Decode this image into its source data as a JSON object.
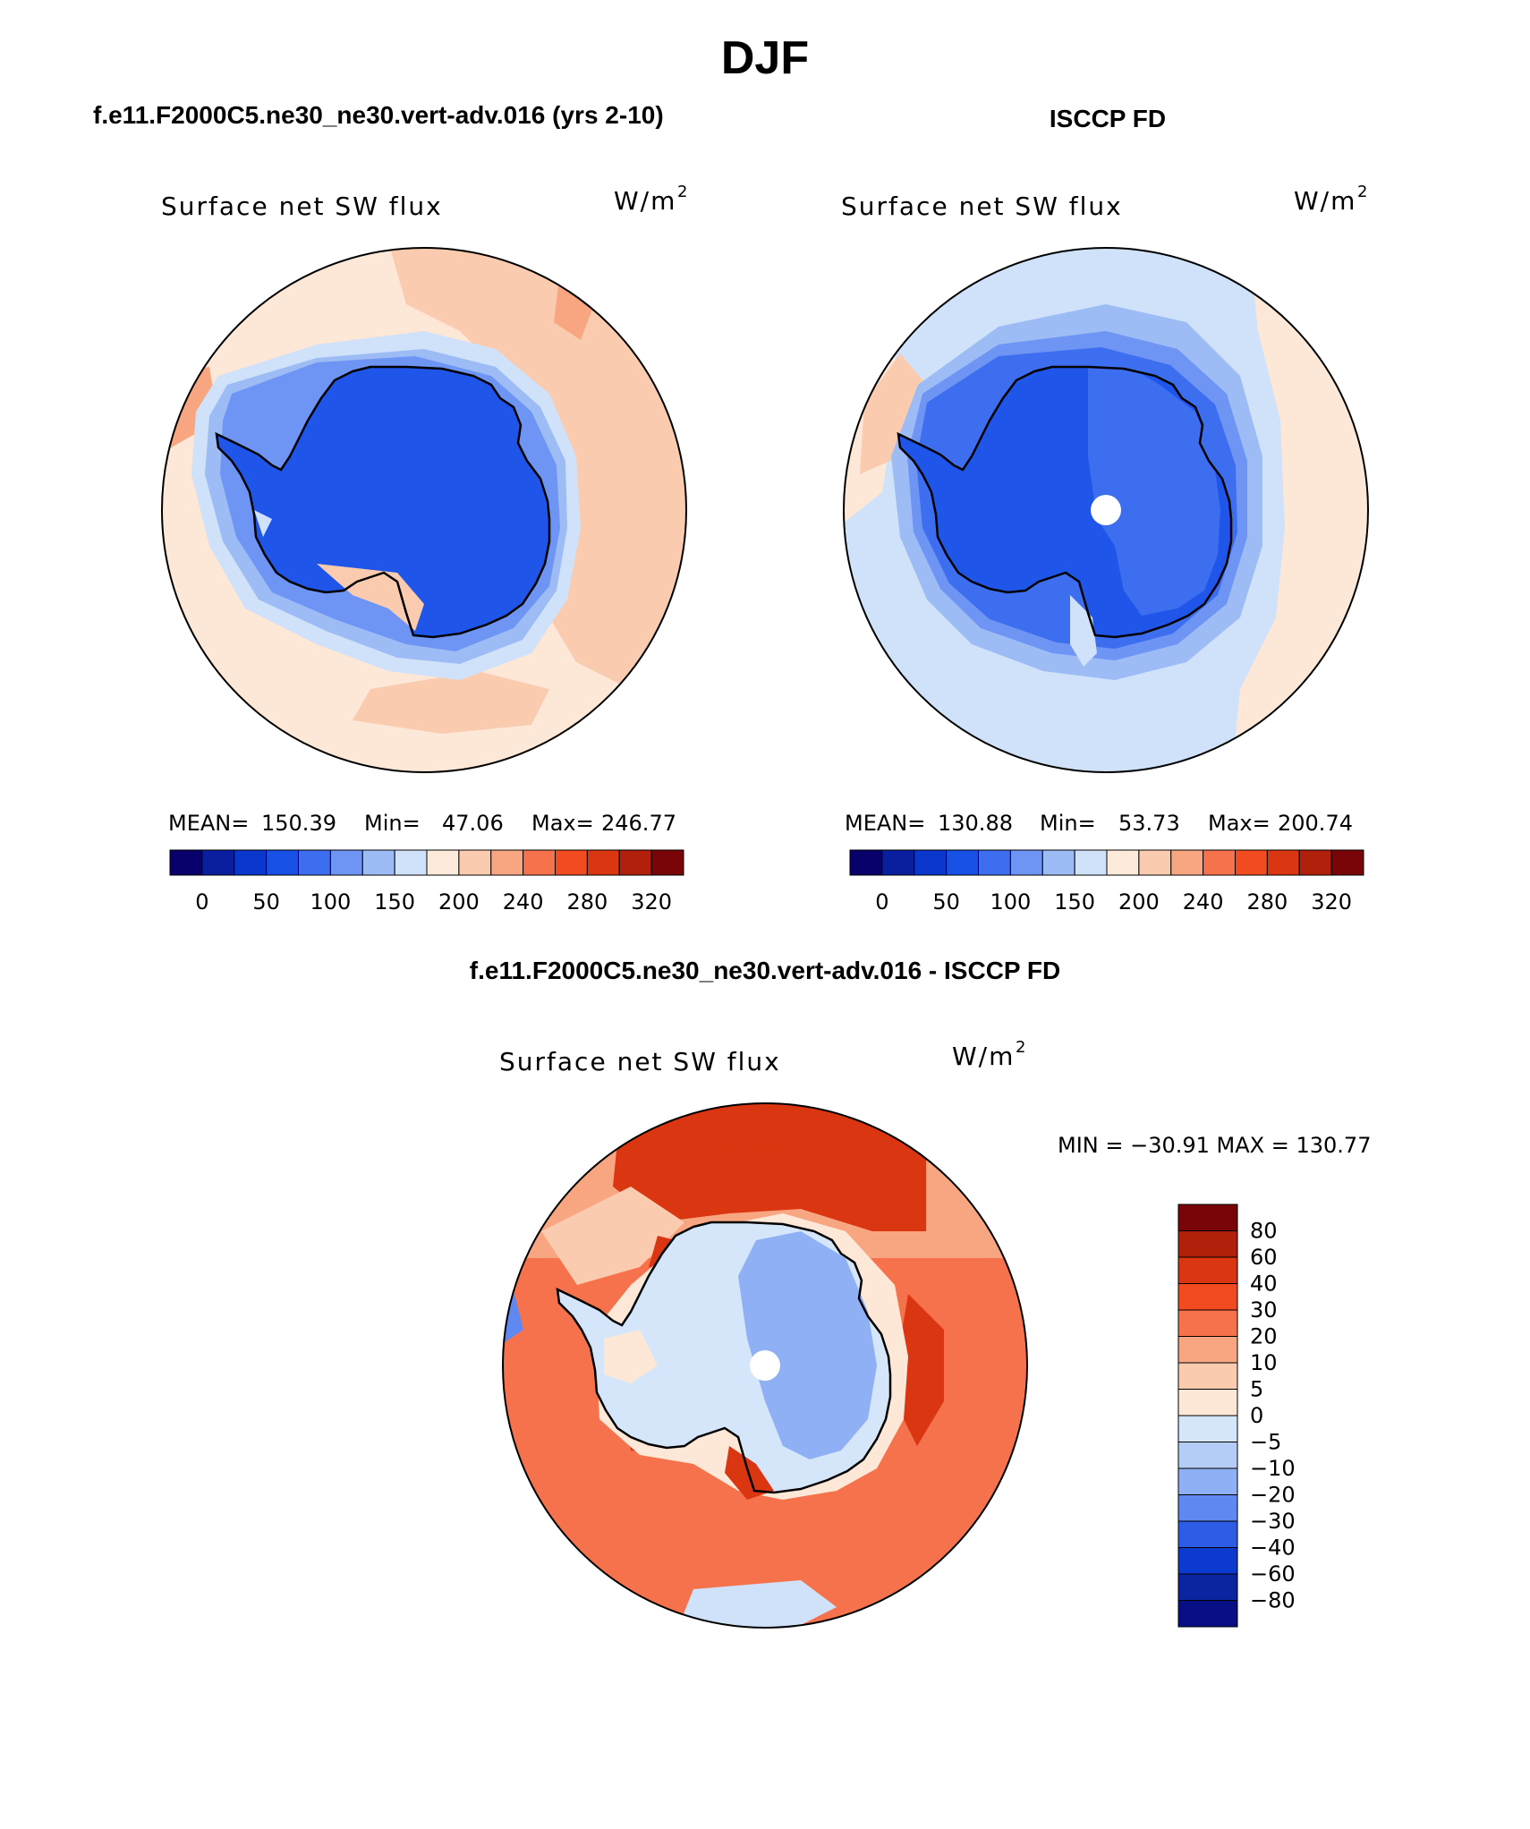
{
  "figure": {
    "title": "DJF"
  },
  "panels": {
    "model": {
      "header": "f.e11.F2000C5.ne30_ne30.vert-adv.016 (yrs 2-10)",
      "variable_label": "Surface net SW flux",
      "units_base": "W/m",
      "units_exp": "2",
      "stats": {
        "mean_label": "MEAN=",
        "mean": "150.39",
        "min_label": "Min=",
        "min": "47.06",
        "max_label": "Max=",
        "max": "246.77"
      },
      "has_missing_pole": false
    },
    "obs": {
      "header": "ISCCP FD",
      "variable_label": "Surface net SW flux",
      "units_base": "W/m",
      "units_exp": "2",
      "stats": {
        "mean_label": "MEAN=",
        "mean": "130.88",
        "min_label": "Min=",
        "min": "53.73",
        "max_label": "Max=",
        "max": "200.74"
      },
      "has_missing_pole": true
    },
    "diff": {
      "header": "f.e11.F2000C5.ne30_ne30.vert-adv.016 - ISCCP FD",
      "variable_label": "Surface net SW flux",
      "units_base": "W/m",
      "units_exp": "2",
      "minmax_text": "MIN = −30.91 MAX = 130.77",
      "has_missing_pole": true
    }
  },
  "colorbars": {
    "absolute": {
      "colors": [
        "#08006b",
        "#0a1fa0",
        "#0a37cc",
        "#1851e6",
        "#3d6ef0",
        "#6e95f3",
        "#9dbcf6",
        "#cfe2f9",
        "#fdeada",
        "#fbcbb0",
        "#f8a581",
        "#f6724c",
        "#f24b1f",
        "#d93611",
        "#b0200a",
        "#7a0508"
      ],
      "tick_labels": [
        "0",
        "50",
        "100",
        "150",
        "200",
        "240",
        "280",
        "320"
      ]
    },
    "difference": {
      "colors_top_to_bottom": [
        "#7a0508",
        "#b0200a",
        "#d93611",
        "#f24b1f",
        "#f6724c",
        "#f8a581",
        "#fbcbb0",
        "#fde7d7",
        "#d5e6fa",
        "#b4cdf7",
        "#8fb0f4",
        "#5f88f1",
        "#2f5ce6",
        "#0c3acf",
        "#0b249f",
        "#080f85"
      ],
      "tick_labels_top_to_bottom": [
        "80",
        "60",
        "40",
        "30",
        "20",
        "10",
        "5",
        "0",
        "−5",
        "−10",
        "−20",
        "−30",
        "−40",
        "−60",
        "−80"
      ]
    }
  }
}
